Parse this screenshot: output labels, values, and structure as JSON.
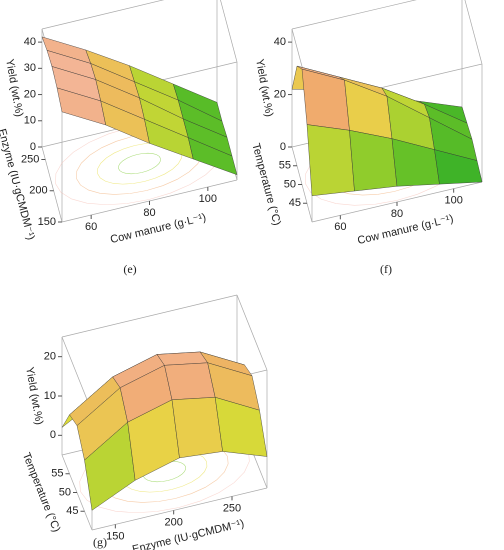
{
  "chart_data": [
    {
      "type": "surface",
      "panel": "(e)",
      "xlabel": "Cow manure (g·L⁻¹)",
      "ylabel": "Enzyme (IU·gCMDM⁻¹)",
      "zlabel": "Yield (wt.%)",
      "x": [
        50,
        65,
        80,
        95,
        110
      ],
      "y": [
        150,
        180,
        210,
        240,
        270
      ],
      "z": [
        [
          42,
          33,
          22,
          12,
          2
        ],
        [
          44,
          35,
          24,
          13,
          2
        ],
        [
          45,
          36,
          25,
          13,
          2
        ],
        [
          44,
          35,
          24,
          13,
          1
        ],
        [
          42,
          33,
          23,
          12,
          1
        ]
      ],
      "xlim": [
        50,
        110
      ],
      "ylim": [
        150,
        270
      ],
      "zlim": [
        0,
        45
      ],
      "xticks": [
        60,
        80,
        100
      ],
      "yticks": [
        150,
        200,
        250
      ],
      "zticks": [
        0,
        10,
        20,
        30,
        40
      ]
    },
    {
      "type": "surface",
      "panel": "(f)",
      "xlabel": "Cow manure (g·L⁻¹)",
      "ylabel": "Temperature (°C)",
      "zlabel": "Yield (wt.%)",
      "x": [
        50,
        65,
        80,
        95,
        110
      ],
      "y": [
        40,
        45,
        50,
        55,
        60
      ],
      "z": [
        [
          10,
          8,
          6,
          3,
          0
        ],
        [
          30,
          24,
          17,
          9,
          1
        ],
        [
          44,
          36,
          26,
          14,
          2
        ],
        [
          38,
          30,
          22,
          12,
          1
        ],
        [
          22,
          18,
          12,
          6,
          0
        ]
      ],
      "xlim": [
        50,
        110
      ],
      "ylim": [
        40,
        60
      ],
      "zlim": [
        0,
        45
      ],
      "xticks": [
        60,
        80,
        100
      ],
      "yticks": [
        45,
        50,
        55
      ],
      "zticks": [
        0,
        20,
        40
      ]
    },
    {
      "type": "surface",
      "panel": "(g)",
      "xlabel": "Enzyme (IU·gCMDM⁻¹)",
      "ylabel": "Temperature (°C)",
      "zlabel": "Yield (wt.%)",
      "x": [
        130,
        167,
        205,
        242,
        280
      ],
      "y": [
        40,
        45,
        50,
        55,
        60
      ],
      "z": [
        [
          0,
          5,
          8,
          7,
          3
        ],
        [
          8,
          15,
          18,
          16,
          10
        ],
        [
          12,
          19,
          22,
          20,
          14
        ],
        [
          10,
          17,
          20,
          18,
          12
        ],
        [
          2,
          8,
          12,
          10,
          5
        ]
      ],
      "xlim": [
        130,
        280
      ],
      "ylim": [
        40,
        60
      ],
      "zlim": [
        -5,
        25
      ],
      "xticks": [
        150,
        200,
        250
      ],
      "yticks": [
        45,
        50,
        55
      ],
      "zticks": [
        0,
        10,
        20
      ]
    }
  ]
}
